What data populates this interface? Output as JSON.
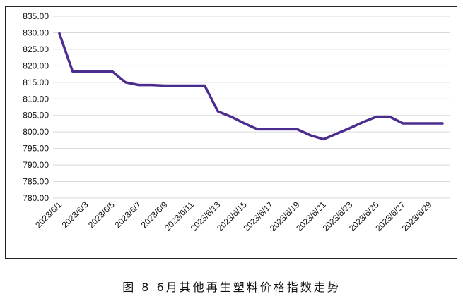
{
  "caption": "图 8  6月其他再生塑料价格指数走势",
  "chart_data": {
    "type": "line",
    "title": "",
    "xlabel": "",
    "ylabel": "",
    "ylim": [
      780,
      835
    ],
    "y_tick_step": 5,
    "y_tick_decimals": 2,
    "grid": "horizontal",
    "line_color": "#4b2c8f",
    "x": [
      "2023/6/1",
      "2023/6/2",
      "2023/6/3",
      "2023/6/4",
      "2023/6/5",
      "2023/6/6",
      "2023/6/7",
      "2023/6/8",
      "2023/6/9",
      "2023/6/10",
      "2023/6/11",
      "2023/6/12",
      "2023/6/13",
      "2023/6/14",
      "2023/6/15",
      "2023/6/16",
      "2023/6/17",
      "2023/6/18",
      "2023/6/19",
      "2023/6/20",
      "2023/6/21",
      "2023/6/22",
      "2023/6/23",
      "2023/6/24",
      "2023/6/25",
      "2023/6/26",
      "2023/6/27",
      "2023/6/28",
      "2023/6/29",
      "2023/6/30"
    ],
    "x_tick_labels": [
      "2023/6/1",
      "2023/6/3",
      "2023/6/5",
      "2023/6/7",
      "2023/6/9",
      "2023/6/11",
      "2023/6/13",
      "2023/6/15",
      "2023/6/17",
      "2023/6/19",
      "2023/6/21",
      "2023/6/23",
      "2023/6/25",
      "2023/6/27",
      "2023/6/29"
    ],
    "series": [
      {
        "values": [
          829.8,
          818.3,
          818.3,
          818.3,
          818.3,
          815.0,
          814.2,
          814.2,
          814.0,
          814.0,
          814.0,
          814.0,
          806.2,
          804.6,
          802.6,
          800.8,
          800.8,
          800.8,
          800.8,
          799.0,
          797.8,
          799.5,
          801.2,
          803.0,
          804.6,
          804.6,
          802.6,
          802.6,
          802.6,
          802.6
        ]
      }
    ]
  }
}
